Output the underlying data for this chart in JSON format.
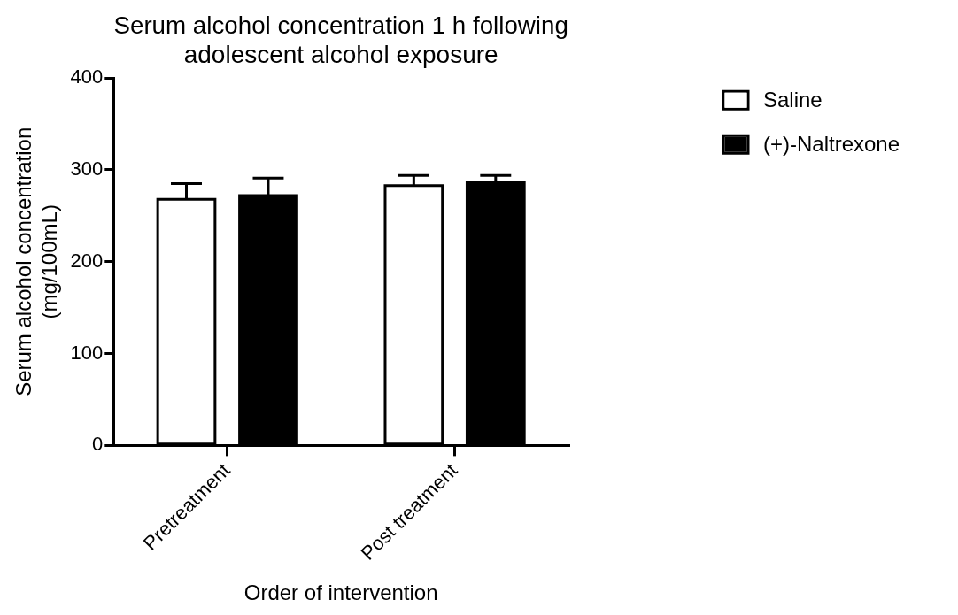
{
  "chart_data": {
    "type": "bar",
    "title": "Serum alcohol concentration 1 h following adolescent alcohol exposure",
    "xlabel": "Order of intervention",
    "ylabel": "Serum alcohol concentration (mg/100mL)",
    "categories": [
      "Pretreatment",
      "Post treatment"
    ],
    "series": [
      {
        "name": "Saline",
        "color": "#ffffff",
        "values": [
          268,
          283
        ],
        "errors": [
          [
            268,
            285
          ],
          [
            283,
            294
          ]
        ]
      },
      {
        "name": "(+)-Naltrexone",
        "color": "#000000",
        "values": [
          272,
          287
        ],
        "errors": [
          [
            272,
            291
          ],
          [
            287,
            294
          ]
        ]
      }
    ],
    "ylim": [
      0,
      400
    ],
    "yticks": [
      0,
      100,
      200,
      300,
      400
    ],
    "grid": false,
    "legend": "top right"
  }
}
